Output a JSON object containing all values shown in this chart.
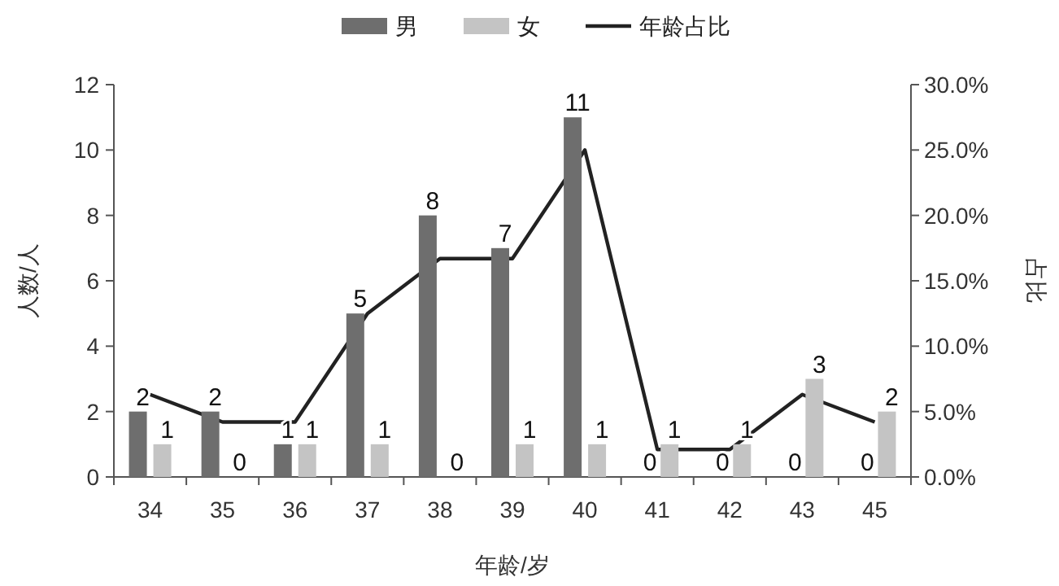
{
  "chart_data": {
    "type": "bar",
    "xlabel": "年龄/岁",
    "ylabel": "人数/人",
    "y2label": "占比",
    "categories": [
      "34",
      "35",
      "36",
      "37",
      "38",
      "39",
      "40",
      "41",
      "42",
      "43",
      "45"
    ],
    "series": [
      {
        "name": "男",
        "color": "#6e6e6e",
        "values": [
          2,
          2,
          1,
          5,
          8,
          7,
          11,
          0,
          0,
          0,
          0
        ],
        "value_labels": [
          "2",
          "2",
          "1",
          "5",
          "8",
          "7",
          "11",
          "0",
          "0",
          "0",
          "0"
        ]
      },
      {
        "name": "女",
        "color": "#c4c4c4",
        "values": [
          1,
          0,
          1,
          1,
          0,
          1,
          1,
          1,
          1,
          3,
          2
        ],
        "value_labels": [
          "1",
          "0",
          "1",
          "1",
          "0",
          "1",
          "1",
          "1",
          "1",
          "3",
          "2"
        ]
      },
      {
        "name": "年龄占比",
        "type": "line",
        "axis": "y2",
        "color": "#222222",
        "values": [
          6.3,
          4.2,
          4.2,
          12.5,
          16.7,
          16.7,
          25,
          2.1,
          2.1,
          6.3,
          4.2
        ]
      }
    ],
    "ylim": [
      0,
      12
    ],
    "yticks": [
      0,
      2,
      4,
      6,
      8,
      10,
      12
    ],
    "y2lim": [
      0,
      30
    ],
    "y2ticks": [
      {
        "value": 0,
        "label": "0.0%"
      },
      {
        "value": 5,
        "label": "5.0%"
      },
      {
        "value": 10,
        "label": "10.0%"
      },
      {
        "value": 15,
        "label": "15.0%"
      },
      {
        "value": 20,
        "label": "20.0%"
      },
      {
        "value": 25,
        "label": "25.0%"
      },
      {
        "value": 30,
        "label": "30.0%"
      }
    ],
    "legend": "top",
    "grid": false,
    "marker": "none",
    "line_style": "solid"
  }
}
